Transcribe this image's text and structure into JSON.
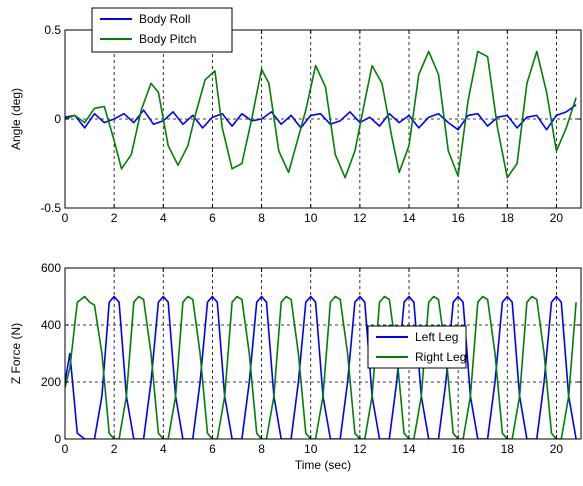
{
  "chart_data": [
    {
      "type": "line",
      "title": "",
      "xlabel": "",
      "ylabel": "Angle (deg)",
      "xlim": [
        0,
        21
      ],
      "ylim": [
        -0.5,
        0.5
      ],
      "x_ticks": [
        0,
        2,
        4,
        6,
        8,
        10,
        12,
        14,
        16,
        18,
        20
      ],
      "y_ticks": [
        -0.5,
        0,
        0.5
      ],
      "y_tick_labels": [
        "-0.5",
        "0",
        "0.5"
      ],
      "grid": "x-major dashed plus dashed zero line",
      "legend": "top-left",
      "series": [
        {
          "name": "Body Roll",
          "color": "#0000ff",
          "x": [
            0,
            0.4,
            0.8,
            1.2,
            1.6,
            2,
            2.4,
            2.8,
            3.2,
            3.6,
            4,
            4.4,
            4.8,
            5.2,
            5.6,
            6,
            6.4,
            6.8,
            7.2,
            7.6,
            8,
            8.4,
            8.8,
            9.2,
            9.6,
            10,
            10.4,
            10.8,
            11.2,
            11.6,
            12,
            12.4,
            12.8,
            13.2,
            13.6,
            14,
            14.4,
            14.8,
            15.2,
            15.6,
            16,
            16.4,
            16.8,
            17.2,
            17.6,
            18,
            18.4,
            18.8,
            19.2,
            19.6,
            20,
            20.4,
            20.8
          ],
          "y": [
            0.01,
            0.02,
            -0.05,
            0.03,
            -0.02,
            0.0,
            0.03,
            -0.02,
            0.05,
            -0.03,
            -0.01,
            0.04,
            -0.03,
            0.02,
            -0.05,
            0.01,
            0.03,
            -0.04,
            0.03,
            -0.01,
            0.0,
            0.04,
            -0.03,
            0.02,
            -0.05,
            0.02,
            0.03,
            -0.03,
            -0.01,
            0.04,
            -0.02,
            0.01,
            -0.04,
            0.03,
            -0.02,
            0.02,
            -0.05,
            0.01,
            0.03,
            -0.02,
            -0.06,
            0.02,
            0.03,
            -0.04,
            0.01,
            0.02,
            -0.05,
            0.01,
            0.02,
            -0.06,
            0.02,
            0.04,
            0.08
          ]
        },
        {
          "name": "Body Pitch",
          "color": "#008000",
          "x": [
            0,
            0.4,
            0.8,
            1.2,
            1.6,
            2.0,
            2.3,
            2.7,
            3.1,
            3.5,
            3.8,
            4.2,
            4.6,
            5.0,
            5.3,
            5.7,
            6.1,
            6.4,
            6.8,
            7.2,
            7.6,
            8.0,
            8.3,
            8.7,
            9.1,
            9.4,
            9.8,
            10.2,
            10.6,
            11.0,
            11.4,
            11.8,
            12.2,
            12.5,
            12.9,
            13.3,
            13.6,
            14.0,
            14.4,
            14.8,
            15.2,
            15.6,
            16.0,
            16.4,
            16.8,
            17.2,
            17.6,
            18.0,
            18.4,
            18.8,
            19.2,
            19.6,
            20.0,
            20.4,
            20.8
          ],
          "y": [
            0.0,
            0.02,
            -0.02,
            0.06,
            0.07,
            -0.12,
            -0.28,
            -0.2,
            0.05,
            0.2,
            0.15,
            -0.15,
            -0.26,
            -0.15,
            0.02,
            0.22,
            0.27,
            -0.05,
            -0.28,
            -0.25,
            0.0,
            0.28,
            0.2,
            -0.18,
            -0.3,
            -0.15,
            0.05,
            0.3,
            0.18,
            -0.2,
            -0.33,
            -0.18,
            0.1,
            0.3,
            0.2,
            -0.1,
            -0.3,
            -0.15,
            0.25,
            0.38,
            0.25,
            -0.18,
            -0.32,
            0.1,
            0.38,
            0.35,
            -0.05,
            -0.33,
            -0.25,
            0.2,
            0.38,
            0.15,
            -0.18,
            -0.05,
            0.12
          ]
        }
      ]
    },
    {
      "type": "line",
      "title": "",
      "xlabel": "Time (sec)",
      "ylabel": "Z Force (N)",
      "xlim": [
        0,
        21
      ],
      "ylim": [
        0,
        600
      ],
      "x_ticks": [
        0,
        2,
        4,
        6,
        8,
        10,
        12,
        14,
        16,
        18,
        20
      ],
      "y_ticks": [
        0,
        200,
        400,
        600
      ],
      "grid": "x-major dashed plus dashed lines at 200 and 400",
      "legend": "center-right",
      "series": [
        {
          "name": "Left Leg",
          "color": "#0000ff",
          "x": [
            0,
            0.2,
            0.5,
            0.8,
            1.0,
            1.2,
            1.5,
            1.8,
            2.0,
            2.2,
            2.5,
            2.8,
            3.0,
            3.2,
            3.5,
            3.8,
            4.0,
            4.2,
            4.5,
            4.8,
            5.0,
            5.2,
            5.5,
            5.8,
            6.0,
            6.2,
            6.5,
            6.8,
            7.0,
            7.2,
            7.5,
            7.8,
            8.0,
            8.2,
            8.5,
            8.8,
            9.0,
            9.2,
            9.5,
            9.8,
            10.0,
            10.2,
            10.5,
            10.8,
            11.0,
            11.2,
            11.5,
            11.8,
            12.0,
            12.2,
            12.5,
            12.8,
            13.0,
            13.2,
            13.5,
            13.8,
            14.0,
            14.2,
            14.5,
            14.8,
            15.0,
            15.2,
            15.5,
            15.8,
            16.0,
            16.2,
            16.5,
            16.8,
            17.0,
            17.2,
            17.5,
            17.8,
            18.0,
            18.2,
            18.5,
            18.8,
            19.0,
            19.2,
            19.5,
            19.8,
            20.0,
            20.2,
            20.5,
            20.8
          ],
          "y": [
            200,
            300,
            20,
            0,
            0,
            0,
            150,
            480,
            500,
            480,
            150,
            0,
            0,
            0,
            200,
            480,
            500,
            480,
            150,
            0,
            0,
            0,
            200,
            480,
            500,
            480,
            150,
            0,
            0,
            0,
            200,
            480,
            500,
            480,
            150,
            0,
            0,
            0,
            200,
            480,
            500,
            480,
            150,
            0,
            0,
            0,
            200,
            480,
            500,
            480,
            150,
            0,
            0,
            0,
            200,
            480,
            500,
            480,
            150,
            0,
            0,
            0,
            200,
            480,
            500,
            480,
            150,
            0,
            0,
            0,
            200,
            480,
            500,
            480,
            150,
            0,
            0,
            0,
            200,
            480,
            500,
            480,
            150,
            0
          ]
        },
        {
          "name": "Right Leg",
          "color": "#008000",
          "x": [
            0,
            0.2,
            0.5,
            0.8,
            1.0,
            1.2,
            1.5,
            1.8,
            2.0,
            2.2,
            2.5,
            2.8,
            3.0,
            3.2,
            3.5,
            3.8,
            4.0,
            4.2,
            4.5,
            4.8,
            5.0,
            5.2,
            5.5,
            5.8,
            6.0,
            6.2,
            6.5,
            6.8,
            7.0,
            7.2,
            7.5,
            7.8,
            8.0,
            8.2,
            8.5,
            8.8,
            9.0,
            9.2,
            9.5,
            9.8,
            10.0,
            10.2,
            10.5,
            10.8,
            11.0,
            11.2,
            11.5,
            11.8,
            12.0,
            12.2,
            12.5,
            12.8,
            13.0,
            13.2,
            13.5,
            13.8,
            14.0,
            14.2,
            14.5,
            14.8,
            15.0,
            15.2,
            15.5,
            15.8,
            16.0,
            16.2,
            16.5,
            16.8,
            17.0,
            17.2,
            17.5,
            17.8,
            18.0,
            18.2,
            18.5,
            18.8,
            19.0,
            19.2,
            19.5,
            19.8,
            20.0,
            20.2,
            20.5,
            20.8
          ],
          "y": [
            180,
            250,
            480,
            500,
            480,
            470,
            300,
            20,
            0,
            0,
            150,
            480,
            500,
            490,
            300,
            20,
            0,
            0,
            150,
            480,
            500,
            490,
            300,
            20,
            0,
            0,
            150,
            480,
            500,
            490,
            300,
            20,
            0,
            0,
            150,
            480,
            500,
            490,
            300,
            20,
            0,
            0,
            150,
            480,
            500,
            490,
            300,
            20,
            0,
            0,
            150,
            480,
            500,
            490,
            300,
            20,
            0,
            0,
            150,
            480,
            500,
            490,
            300,
            20,
            0,
            0,
            150,
            480,
            500,
            490,
            300,
            20,
            0,
            0,
            150,
            480,
            500,
            490,
            300,
            20,
            0,
            0,
            150,
            480
          ]
        }
      ]
    }
  ]
}
